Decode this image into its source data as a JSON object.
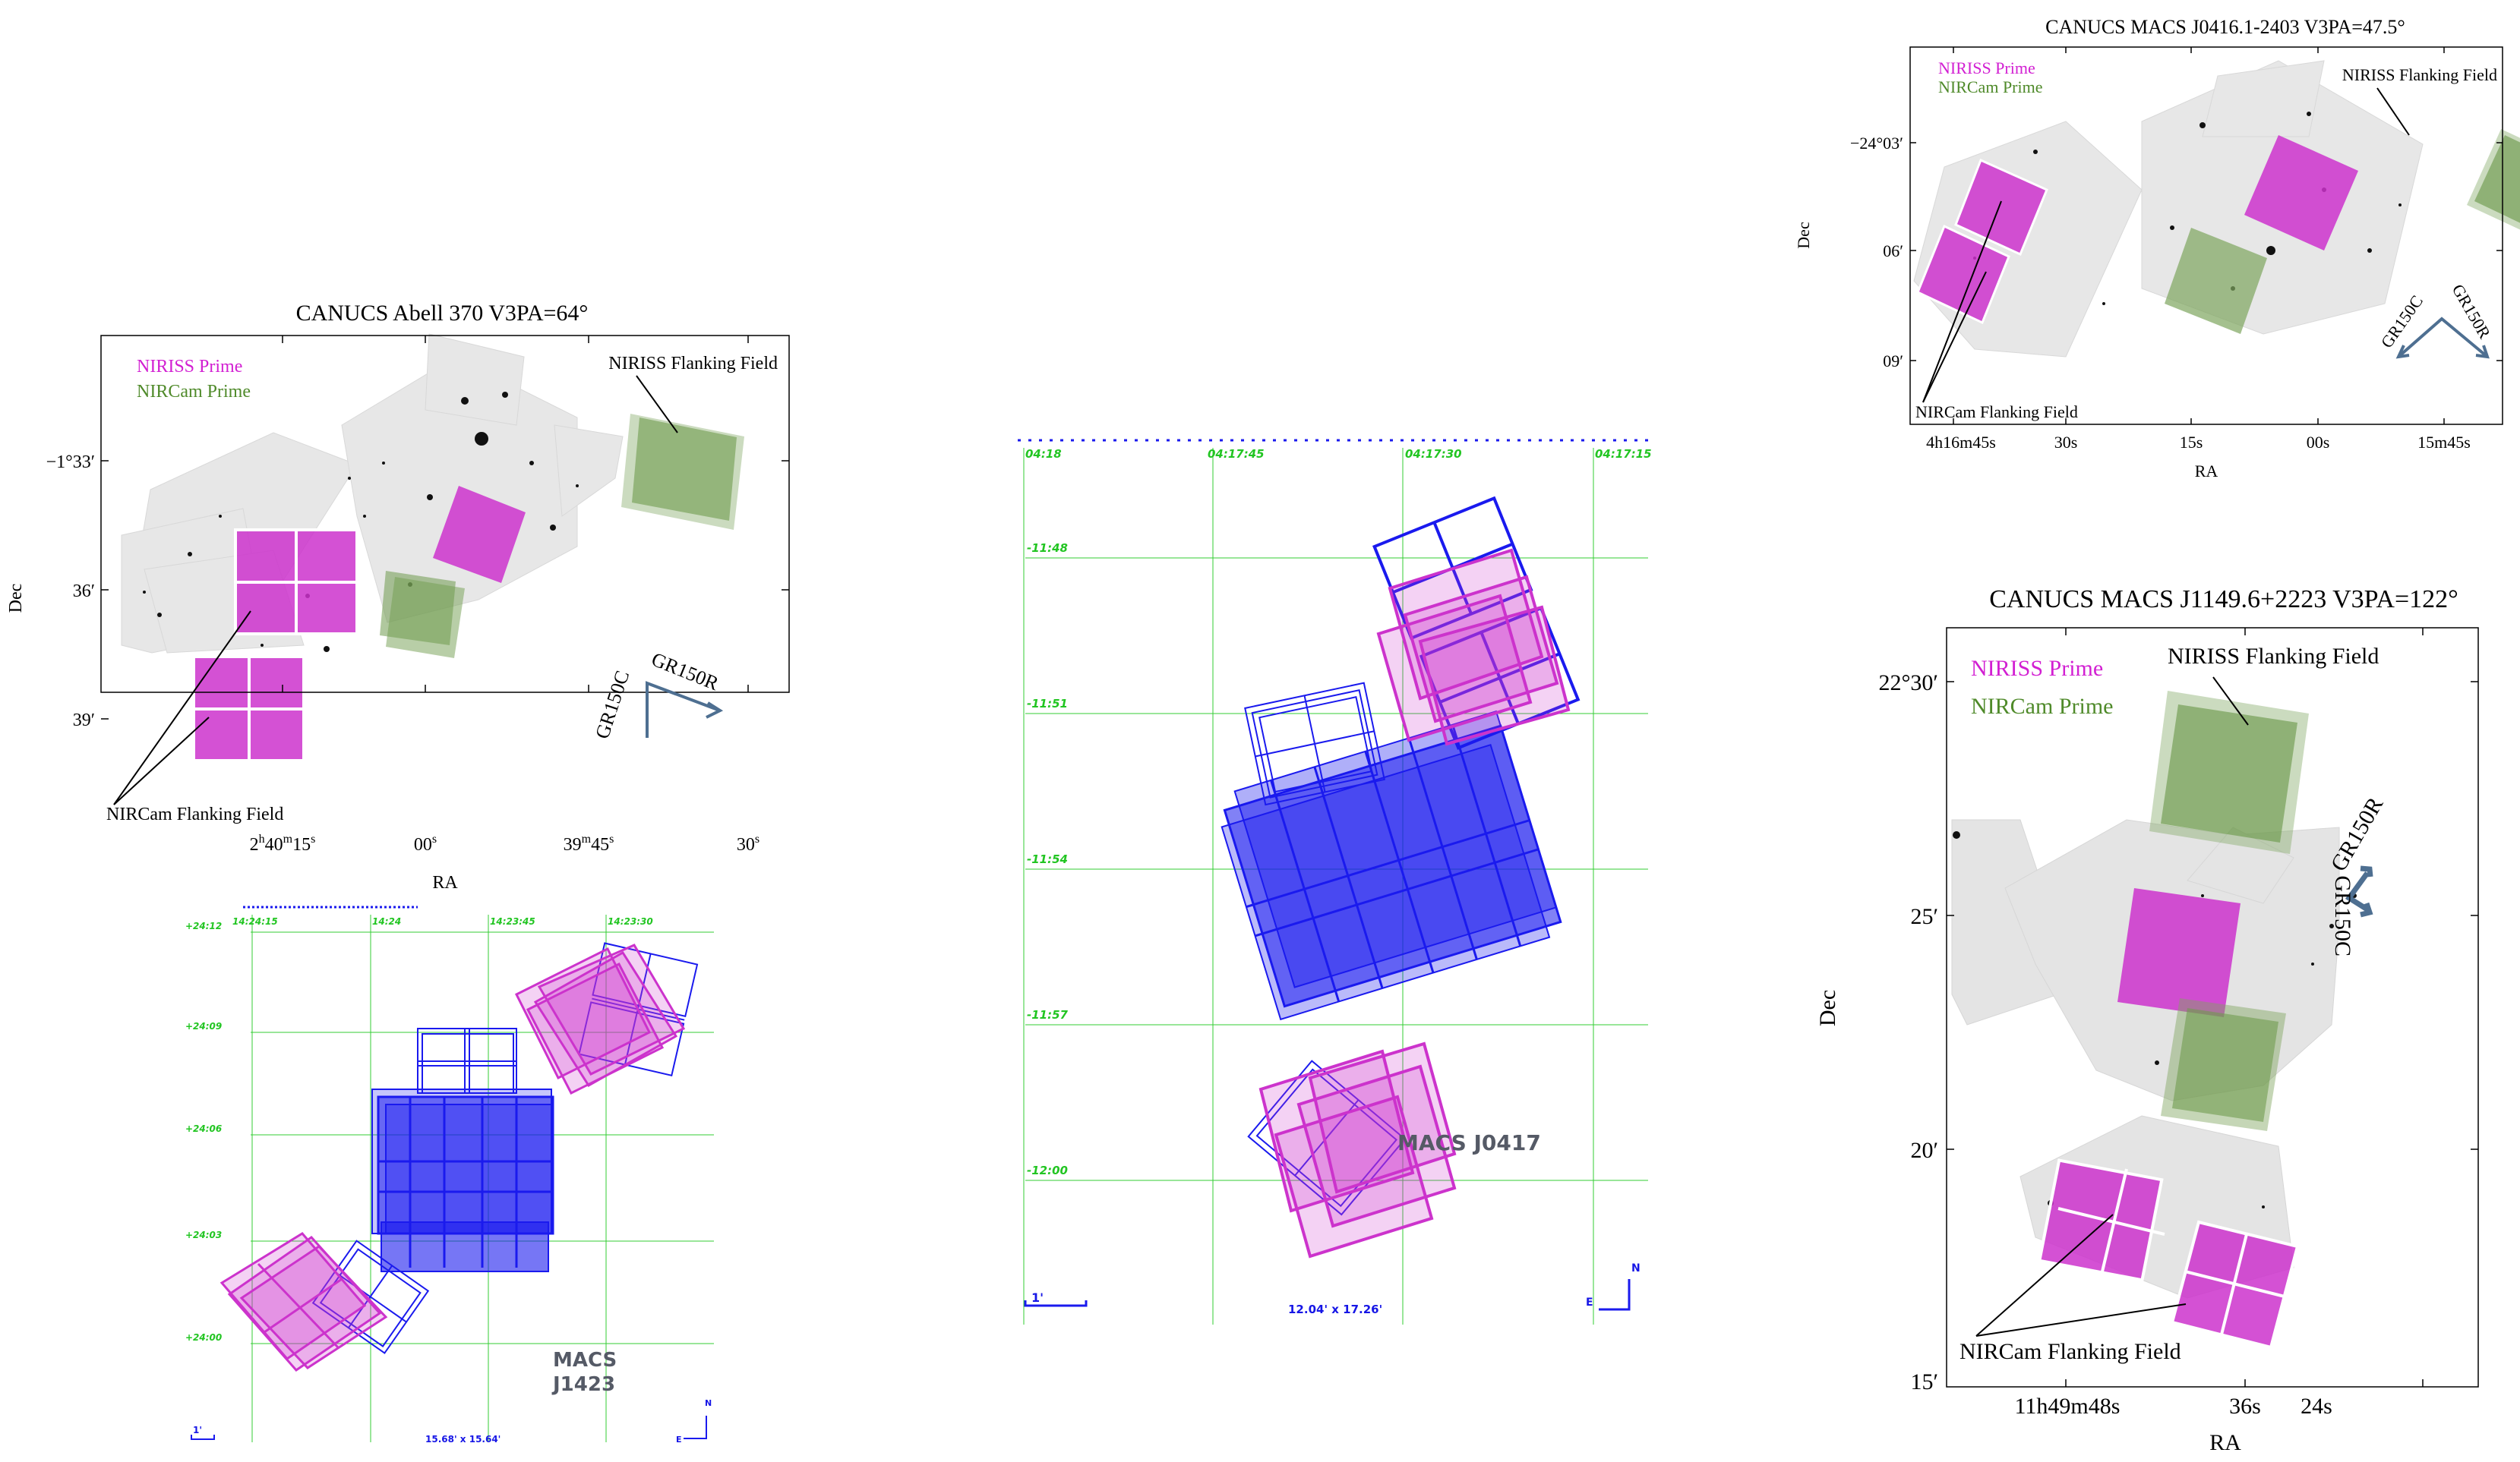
{
  "colors": {
    "niriss_prime": "#d21fd2",
    "niriss_fill": "#cc33cc",
    "nircam_prime": "#4f8a2a",
    "nircam_fill": "#7ea55e",
    "aladin_blue": "#1a1aee",
    "grid_green": "#33cc33",
    "arrow_blue": "#4e6f91",
    "sky_gray": "#e6e6e6"
  },
  "panel_abell370": {
    "title": "CANUCS Abell 370 V3PA=64°",
    "legend_niriss": "NIRISS Prime",
    "legend_nircam": "NIRCam Prime",
    "label_niriss_flanking": "NIRISS Flanking Field",
    "label_nircam_flanking": "NIRCam Flanking Field",
    "arrow_c": "GR150C",
    "arrow_r": "GR150R",
    "ylabel": "Dec",
    "xlabel": "RA",
    "y_ticks": [
      "−1°33′",
      "36′",
      "39′"
    ],
    "x_ticks": [
      "2h40m15s",
      "00s",
      "39m45s",
      "30s"
    ],
    "x_tick_parts": [
      {
        "h": "2",
        "m": "40",
        "s": "15",
        "s_unit": "s"
      },
      {
        "s": "00",
        "s_unit": "s"
      },
      {
        "m": "39",
        "s": "45",
        "s_unit": "s"
      },
      {
        "s": "30",
        "s_unit": "s"
      }
    ]
  },
  "panel_j0416": {
    "title": "CANUCS MACS J0416.1-2403 V3PA=47.5°",
    "legend_niriss": "NIRISS Prime",
    "legend_nircam": "NIRCam Prime",
    "label_niriss_flanking": "NIRISS Flanking Field",
    "label_nircam_flanking": "NIRCam Flanking Field",
    "arrow_c": "GR150C",
    "arrow_r": "GR150R",
    "ylabel": "Dec",
    "xlabel": "RA",
    "y_ticks": [
      "−24°03′",
      "06′",
      "09′"
    ],
    "x_ticks": [
      "4h16m45s",
      "30s",
      "15s",
      "00s",
      "15m45s"
    ]
  },
  "panel_j1149": {
    "title": "CANUCS MACS J1149.6+2223 V3PA=122°",
    "legend_niriss": "NIRISS Prime",
    "legend_nircam": "NIRCam Prime",
    "label_niriss_flanking": "NIRISS Flanking Field",
    "label_nircam_flanking": "NIRCam Flanking Field",
    "arrow_c": "GR150C",
    "arrow_r": "GR150R",
    "ylabel": "Dec",
    "xlabel": "RA",
    "y_ticks": [
      "22°30′",
      "25′",
      "20′",
      "15′"
    ],
    "x_ticks": [
      "11h49m48s",
      "36s",
      "24s"
    ]
  },
  "panel_j0417": {
    "name": "MACS J0417",
    "ra_ticks": [
      "04:18",
      "04:17:45",
      "04:17:30",
      "04:17:15"
    ],
    "dec_ticks": [
      "-11:48",
      "-11:51",
      "-11:54",
      "-11:57",
      "-12:00"
    ],
    "scale_label": "1'",
    "fov": "12.04' x 17.26'",
    "compass_n": "N",
    "compass_e": "E"
  },
  "panel_j1423": {
    "name_line1": "MACS",
    "name_line2": "J1423",
    "ra_ticks": [
      "14:24:15",
      "14:24",
      "14:23:45",
      "14:23:30"
    ],
    "dec_ticks": [
      "+24:12",
      "+24:09",
      "+24:06",
      "+24:03",
      "+24:00"
    ],
    "scale_label": "1'",
    "fov": "15.68' x 15.64'",
    "compass_n": "N",
    "compass_e": "E"
  }
}
